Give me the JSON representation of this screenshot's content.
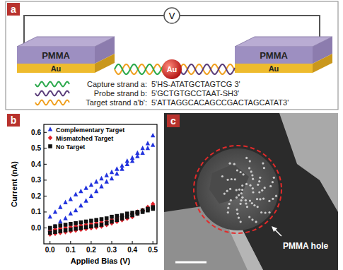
{
  "panel_a": {
    "label": "a",
    "meter": "V",
    "electrodes": [
      {
        "top": "PMMA",
        "bottom": "Au"
      },
      {
        "top": "PMMA",
        "bottom": "Au"
      }
    ],
    "nanoparticle": "Au",
    "strands": [
      {
        "name": "Capture strand a:",
        "sequence": "5'HS-ATATGCTAGTCG 3'",
        "color": "#2aa84a"
      },
      {
        "name": "Probe strand b:",
        "sequence": "5'GCTGTGCCTAAT-SH3'",
        "color": "#5a3d7a"
      },
      {
        "name": "Target strand a'b':",
        "sequence": "5'ATTAGGCACAGCCGACTAGCATAT3'",
        "color": "#f0a020"
      }
    ]
  },
  "chart_data": {
    "type": "scatter",
    "label": "b",
    "xlabel": "Applied Bias (V)",
    "ylabel": "Current (nA)",
    "x": [
      0,
      0.025,
      0.05,
      0.075,
      0.1,
      0.125,
      0.15,
      0.175,
      0.2,
      0.225,
      0.25,
      0.275,
      0.3,
      0.325,
      0.35,
      0.375,
      0.4,
      0.425,
      0.45,
      0.475,
      0.5,
      0.5,
      0.475,
      0.45,
      0.425,
      0.4,
      0.375,
      0.35,
      0.325,
      0.3,
      0.275,
      0.25,
      0.225,
      0.2,
      0.175,
      0.15,
      0.125,
      0.1,
      0.075,
      0.05,
      0.025,
      0
    ],
    "series": [
      {
        "name": "Complementary Target",
        "color": "#2233dd",
        "marker": "triangle",
        "values": [
          0.07,
          0.1,
          0.13,
          0.16,
          0.18,
          0.21,
          0.23,
          0.25,
          0.27,
          0.29,
          0.31,
          0.33,
          0.35,
          0.37,
          0.39,
          0.42,
          0.44,
          0.47,
          0.5,
          0.53,
          0.58,
          0.52,
          0.5,
          0.47,
          0.45,
          0.42,
          0.4,
          0.37,
          0.34,
          0.31,
          0.29,
          0.26,
          0.23,
          0.2,
          0.17,
          0.14,
          0.11,
          0.09,
          0.06,
          0.04,
          0.01,
          -0.01
        ]
      },
      {
        "name": "Mismatched Target",
        "color": "#e0202a",
        "marker": "diamond",
        "values": [
          -0.04,
          -0.035,
          -0.03,
          -0.025,
          -0.02,
          -0.015,
          -0.01,
          -0.005,
          0,
          0.005,
          0.01,
          0.02,
          0.03,
          0.04,
          0.05,
          0.06,
          0.07,
          0.09,
          0.11,
          0.13,
          0.15,
          0.14,
          0.12,
          0.11,
          0.1,
          0.09,
          0.08,
          0.07,
          0.06,
          0.05,
          0.04,
          0.035,
          0.03,
          0.025,
          0.02,
          0.015,
          0.01,
          0.005,
          0,
          -0.005,
          -0.01,
          -0.02
        ]
      },
      {
        "name": "No Target",
        "color": "#111111",
        "marker": "square",
        "values": [
          -0.03,
          -0.025,
          -0.02,
          -0.015,
          -0.01,
          -0.005,
          0,
          0.005,
          0.01,
          0.015,
          0.02,
          0.03,
          0.04,
          0.05,
          0.06,
          0.07,
          0.08,
          0.09,
          0.1,
          0.11,
          0.12,
          0.13,
          0.12,
          0.11,
          0.1,
          0.095,
          0.09,
          0.08,
          0.075,
          0.07,
          0.06,
          0.055,
          0.05,
          0.045,
          0.04,
          0.035,
          0.03,
          0.025,
          0.02,
          0.015,
          0.01,
          0
        ]
      }
    ],
    "xlim": [
      -0.03,
      0.52
    ],
    "xticks": [
      {
        "value": 0,
        "label": "0.0"
      },
      0.1,
      0.2,
      0.3,
      0.4,
      0.5
    ],
    "ylim": [
      -0.1,
      0.65
    ],
    "yticks": [
      {
        "value": 0,
        "label": "0.0"
      },
      0.1,
      0.2,
      0.3,
      0.4,
      0.5,
      0.6
    ],
    "legend": "upper left"
  },
  "panel_c": {
    "label": "c",
    "annotation": "PMMA hole"
  }
}
